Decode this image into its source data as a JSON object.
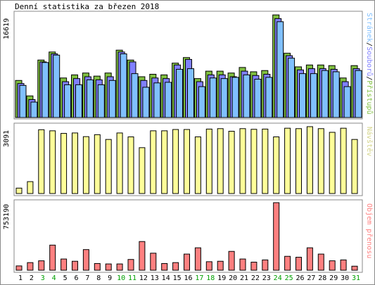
{
  "title": "Denní statistika za březen 2018",
  "panel1": {
    "max_label": "16619",
    "legend": {
      "hits": "Přístupů",
      "sep1": "/",
      "files": "Souborů",
      "sep2": "/",
      "pages": "Stránek"
    }
  },
  "panel2": {
    "max_label": "3091",
    "legend": "Návštěv"
  },
  "panel3": {
    "max_label": "753190",
    "legend": "Objem přenosu"
  },
  "colors": {
    "hits": "#80c040",
    "files": "#8080ff",
    "pages": "#80c0ff",
    "visits": "#ffff99",
    "kbytes": "#ff8080",
    "weekend": "#00a000"
  },
  "chart_data": [
    {
      "type": "bar",
      "title": "Denní statistika za březen 2018",
      "ylabel": "16619",
      "categories": [
        "1",
        "2",
        "3",
        "4",
        "5",
        "6",
        "7",
        "8",
        "9",
        "10",
        "11",
        "12",
        "13",
        "14",
        "15",
        "16",
        "17",
        "18",
        "19",
        "20",
        "21",
        "22",
        "23",
        "24",
        "25",
        "26",
        "27",
        "28",
        "29",
        "30",
        "31"
      ],
      "weekend_days": [
        "3",
        "4",
        "10",
        "11",
        "17",
        "18",
        "24",
        "25",
        "31"
      ],
      "ylim": [
        0,
        16619
      ],
      "series": [
        {
          "name": "Přístupů",
          "values": [
            6000,
            3500,
            9300,
            10600,
            6400,
            6900,
            7200,
            6700,
            7200,
            10900,
            9300,
            6600,
            7000,
            6900,
            8800,
            9700,
            6300,
            7500,
            7500,
            7200,
            8100,
            7400,
            7600,
            16600,
            10400,
            8200,
            8500,
            8500,
            8400,
            6400,
            8400
          ]
        },
        {
          "name": "Souborů",
          "values": [
            5500,
            2900,
            9000,
            10300,
            5800,
            6300,
            6600,
            6100,
            6600,
            10600,
            9000,
            6000,
            6400,
            6300,
            8500,
            9400,
            5800,
            6900,
            6900,
            6600,
            7500,
            6800,
            7000,
            16000,
            10000,
            7700,
            7900,
            7900,
            7800,
            5800,
            7900
          ]
        },
        {
          "name": "Stránek",
          "values": [
            5200,
            2500,
            8900,
            10100,
            5300,
            5300,
            6100,
            5300,
            6000,
            10300,
            7100,
            4900,
            5600,
            5700,
            7800,
            7900,
            5000,
            6400,
            6300,
            6500,
            6900,
            6200,
            6500,
            15500,
            9600,
            7100,
            7100,
            7600,
            7400,
            5000,
            7600
          ]
        }
      ]
    },
    {
      "type": "bar",
      "ylabel": "3091",
      "categories": [
        "1",
        "2",
        "3",
        "4",
        "5",
        "6",
        "7",
        "8",
        "9",
        "10",
        "11",
        "12",
        "13",
        "14",
        "15",
        "16",
        "17",
        "18",
        "19",
        "20",
        "21",
        "22",
        "23",
        "24",
        "25",
        "26",
        "27",
        "28",
        "29",
        "30",
        "31"
      ],
      "ylim": [
        0,
        3091
      ],
      "series": [
        {
          "name": "Návštěv",
          "values": [
            250,
            550,
            2950,
            2900,
            2780,
            2800,
            2630,
            2720,
            2500,
            2800,
            2620,
            2120,
            2900,
            2900,
            2960,
            2960,
            2620,
            2980,
            3000,
            2880,
            3000,
            2970,
            2980,
            2620,
            3020,
            3000,
            3091,
            3000,
            2830,
            3020,
            2500
          ]
        }
      ]
    },
    {
      "type": "bar",
      "ylabel": "753190",
      "categories": [
        "1",
        "2",
        "3",
        "4",
        "5",
        "6",
        "7",
        "8",
        "9",
        "10",
        "11",
        "12",
        "13",
        "14",
        "15",
        "16",
        "17",
        "18",
        "19",
        "20",
        "21",
        "22",
        "23",
        "24",
        "25",
        "26",
        "27",
        "28",
        "29",
        "30",
        "31"
      ],
      "ylim": [
        0,
        753190
      ],
      "series": [
        {
          "name": "Objem přenosu",
          "values": [
            48000,
            85000,
            105000,
            280000,
            125000,
            100000,
            230000,
            75000,
            70000,
            70000,
            120000,
            320000,
            190000,
            75000,
            85000,
            180000,
            250000,
            95000,
            100000,
            210000,
            125000,
            90000,
            115000,
            753190,
            155000,
            145000,
            250000,
            180000,
            105000,
            115000,
            45000
          ]
        }
      ]
    }
  ]
}
